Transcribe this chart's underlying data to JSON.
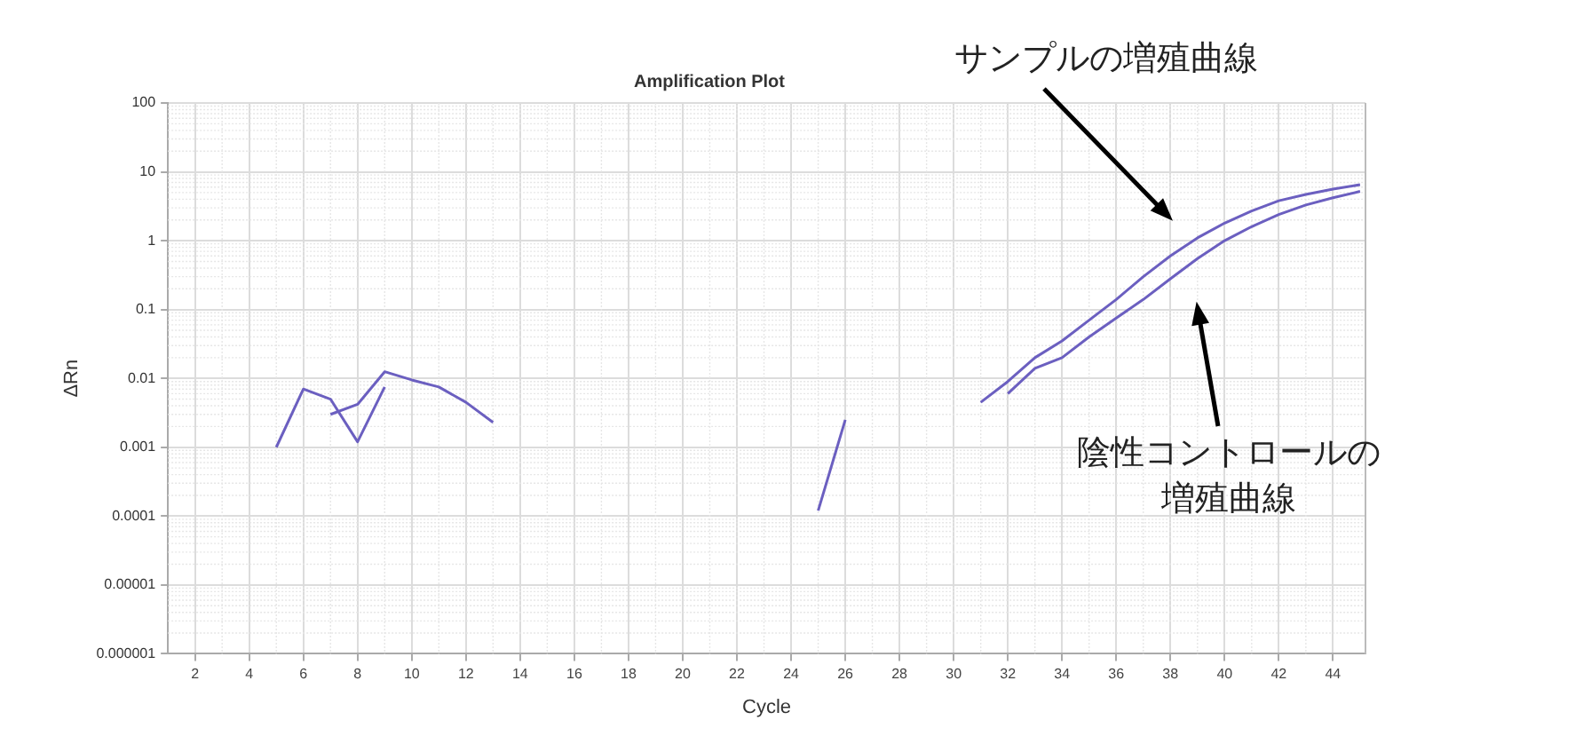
{
  "chart_data": {
    "type": "line",
    "title": "Amplification Plot",
    "xlabel": "Cycle",
    "ylabel": "ΔRn",
    "log": "y",
    "grid": true,
    "legend": false,
    "marker": "none",
    "line_style": "solid",
    "xlim": [
      1,
      45.2
    ],
    "xticks": [
      2,
      4,
      6,
      8,
      10,
      12,
      14,
      16,
      18,
      20,
      22,
      24,
      26,
      28,
      30,
      32,
      34,
      36,
      38,
      40,
      42,
      44
    ],
    "ylim": [
      1e-06,
      100
    ],
    "yticks": [
      {
        "value": 1e-06,
        "label": "0.000001"
      },
      {
        "value": 1e-05,
        "label": "0.00001"
      },
      0.0001,
      0.001,
      0.01,
      0.1,
      1,
      10,
      100
    ],
    "series": [
      {
        "color": "#6b5fc0",
        "x": [
          5,
          6,
          7,
          8,
          9
        ],
        "values": [
          0.001,
          0.007,
          0.005,
          0.0012,
          0.0075
        ]
      },
      {
        "color": "#6b5fc0",
        "x": [
          7,
          8,
          9,
          10,
          11,
          12,
          13
        ],
        "values": [
          0.003,
          0.0042,
          0.0125,
          0.0095,
          0.0075,
          0.0045,
          0.0023
        ]
      },
      {
        "color": "#6b5fc0",
        "x": [
          25,
          26
        ],
        "values": [
          0.00012,
          0.0025
        ]
      },
      {
        "color": "#6b5fc0",
        "x": [
          31,
          32,
          33,
          34,
          35,
          36,
          37,
          38,
          39,
          40,
          41,
          42,
          43,
          44,
          45
        ],
        "values": [
          0.0045,
          0.009,
          0.02,
          0.035,
          0.07,
          0.14,
          0.3,
          0.6,
          1.1,
          1.8,
          2.7,
          3.8,
          4.7,
          5.6,
          6.5
        ]
      },
      {
        "color": "#6b5fc0",
        "x": [
          32,
          33,
          34,
          35,
          36,
          37,
          38,
          39,
          40,
          41,
          42,
          43,
          44,
          45
        ],
        "values": [
          0.006,
          0.014,
          0.02,
          0.04,
          0.075,
          0.14,
          0.28,
          0.55,
          1.0,
          1.6,
          2.4,
          3.3,
          4.2,
          5.2
        ]
      }
    ],
    "annotations": [
      "サンプルの増殖曲線",
      "陰性コントロールの増殖曲線"
    ]
  }
}
